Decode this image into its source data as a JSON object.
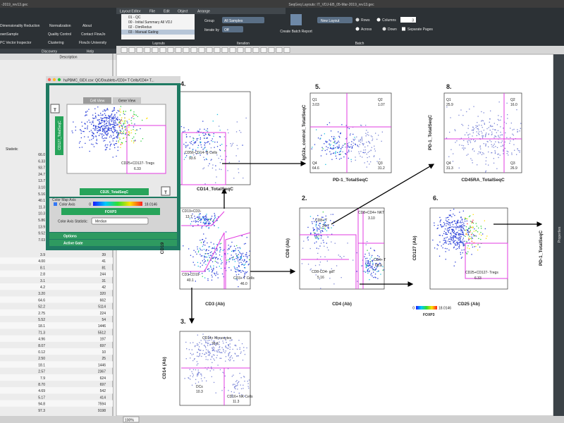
{
  "title_bar": {
    "left": "-2019_rev13.gec",
    "center": "SeqGeq Layouts: IT_VDJ-EB_05-Mar-2019_rev13.gec"
  },
  "ribbon": {
    "tools": [
      "Dimensionality Reduction",
      "Normalization",
      "About",
      "ownSample",
      "Quality Control",
      "Contact FlowJo",
      "PC Vector Inspector",
      "Clustering",
      "FlowJo University"
    ],
    "bands": [
      "Discovery",
      "Help"
    ]
  },
  "layout_editor": {
    "tabs": [
      "Layout Editor",
      "File",
      "Edit",
      "Object",
      "Arrange"
    ],
    "layouts": [
      "01 - QC",
      "00 - Initial Summary All VDJ",
      "02 - DimRedux",
      "03 - Manual Gating"
    ],
    "layouts_label": "Layouts",
    "group_label": "Group",
    "group_value": "All Samples",
    "iterate_label": "Iterate by",
    "iterate_value": "Off",
    "iteration_label": "Iteration",
    "batch_button": "Create Batch Report",
    "new_layout": "New Layout",
    "rows": "Rows",
    "columns": "Columns",
    "columns_value": "3",
    "across": "Across",
    "down": "Down",
    "separate_pages": "Separate Pages",
    "batch_label": "Batch"
  },
  "table": {
    "header": "Description",
    "stat_header": "Statistic",
    "stats": [
      "66.0",
      "6.33",
      "93.7",
      "24.7",
      "13.7",
      "3.10",
      "5.16",
      "40.1",
      "11.3",
      "10.3",
      "5.86",
      "13.9",
      "9.52",
      "7.03"
    ],
    "rows": [
      [
        "3.9",
        "39"
      ],
      [
        "4.00",
        "41"
      ],
      [
        "8.1",
        "81"
      ],
      [
        "2.8",
        "244"
      ],
      [
        "3.1",
        "31"
      ],
      [
        "4.2",
        "42"
      ],
      [
        "3.20",
        "320"
      ],
      [
        "64.6",
        "662"
      ],
      [
        "52.2",
        "5114"
      ],
      [
        "2.75",
        "224"
      ],
      [
        "5.52",
        "54"
      ],
      [
        "18.1",
        "1446"
      ],
      [
        "71.3",
        "5512"
      ],
      [
        "4.96",
        "197"
      ],
      [
        "8.07",
        "697"
      ],
      [
        "0.12",
        "10"
      ],
      [
        "2.50",
        "25"
      ],
      [
        "18.1",
        "1446"
      ],
      [
        "2.57",
        "2367"
      ],
      [
        "7.9",
        "624"
      ],
      [
        "8.70",
        "697"
      ],
      [
        "4.69",
        "542"
      ],
      [
        "5.17",
        "414"
      ],
      [
        "94.8",
        "7594"
      ],
      [
        "97.3",
        "9198"
      ]
    ]
  },
  "gate_window": {
    "title": "huPBMC_GEX.csv: QC/Doublets-/CD3+ T Cells/CD4+ T...",
    "tabs": [
      "Cell View",
      "Gene View"
    ],
    "y_param": "CD127_TotalSeqC",
    "x_param": "CD25_TotalSeqC",
    "button": "T",
    "gate": {
      "name": "CD25+CD127- Tregs",
      "value": "6.33"
    },
    "color_map_label": "Color Map Axis",
    "color_axis": "Color Axis",
    "color_min": "0",
    "color_max": "18.0146",
    "color_param": "FOXP3",
    "statistic_label": "Color Axis Statistic:",
    "statistic": "Median",
    "sections": [
      "Options",
      "Active Gate"
    ]
  },
  "plots": [
    {
      "number": "4.",
      "x_label": "CD14_TotalSeqC",
      "gates": [
        {
          "name": "CD56-CD14- B Cells",
          "value": "93.6"
        }
      ]
    },
    {
      "number": "5.",
      "y_label": "IgG2a_control_TotalSeqC",
      "x_label": "PD-1_TotalSeqC",
      "gates": [
        {
          "name": "Q1",
          "value": "3.03"
        },
        {
          "name": "Q2",
          "value": "1.07"
        },
        {
          "name": "Q4",
          "value": "64.6"
        },
        {
          "name": "Q3",
          "value": "31.2"
        }
      ]
    },
    {
      "number": "8.",
      "y_label": "PD-1_TotalSeqC",
      "x_label": "CD45RA_TotalSeqC",
      "gates": [
        {
          "name": "Q1",
          "value": "25.9"
        },
        {
          "name": "Q2",
          "value": "16.0"
        },
        {
          "name": "Q4",
          "value": "31.3"
        },
        {
          "name": "Q3",
          "value": "26.9"
        }
      ]
    },
    {
      "y_label": "CD19",
      "x_label": "CD3 (Ab)",
      "gates": [
        {
          "name": "CD19+CD3-",
          "value": "13.7"
        },
        {
          "name": "CD3-CD19-",
          "value": "40.1"
        },
        {
          "name": "CD3+ T Cells",
          "value": "46.0"
        }
      ]
    },
    {
      "number": "2.",
      "y_label": "CD8 (Ab)",
      "x_label": "CD4 (Ab)",
      "gates": [
        {
          "name": "CD8+ T",
          "value": "24.7"
        },
        {
          "name": "CD8+CD4+ NKT",
          "value": "3.10"
        },
        {
          "name": "CD8-CD4- gdT",
          "value": "5.16"
        },
        {
          "name": "CD4+ T",
          "value": "66.0"
        }
      ]
    },
    {
      "number": "6.",
      "y_label": "CD127 (Ab)",
      "x_label": "CD25 (Ab)",
      "gates": [
        {
          "name": "CD25+CD127- Tregs",
          "value": "6.33"
        }
      ]
    },
    {
      "number": "3.",
      "y_label": "CD14 (Ab)",
      "gates": [
        {
          "name": "CD14+ Monocytes",
          "value": "78.6"
        },
        {
          "name": "DCs",
          "value": "10.3"
        },
        {
          "name": "CD16+ NK Cells",
          "value": "11.3"
        }
      ]
    }
  ],
  "colorbar": {
    "min": "0",
    "max": "18.0146",
    "param": "FOXP3"
  },
  "side_label": "PD-1_TotalSeqC",
  "properties": "Properties",
  "zoom": "100%"
}
